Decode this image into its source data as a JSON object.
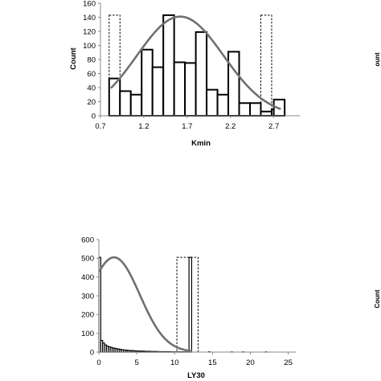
{
  "edge_fragment": {
    "upper": "ount",
    "lower": "Count"
  },
  "chart_data": [
    {
      "type": "bar",
      "subtype": "histogram",
      "xlabel": "Kmin",
      "ylabel": "Count",
      "xlim": [
        0.7,
        3.0
      ],
      "ylim": [
        0,
        160
      ],
      "xticks": [
        "0.7",
        "1.2",
        "1.7",
        "2.2",
        "2.7"
      ],
      "yticks": [
        "0",
        "20",
        "40",
        "60",
        "80",
        "100",
        "120",
        "140",
        "160"
      ],
      "bin_width": 0.125,
      "bins": [
        0.8,
        0.925,
        1.05,
        1.175,
        1.3,
        1.425,
        1.55,
        1.675,
        1.8,
        1.925,
        2.05,
        2.175,
        2.3,
        2.425,
        2.55,
        2.675
      ],
      "values": [
        53,
        35,
        30,
        94,
        69,
        143,
        76,
        75,
        119,
        37,
        30,
        91,
        18,
        18,
        6,
        9
      ],
      "last_bin": {
        "x": 2.7,
        "value": 23
      },
      "highlight_bins": [
        {
          "x": 0.8,
          "width": 0.125,
          "value": 143,
          "style": "dashed"
        },
        {
          "x": 2.55,
          "width": 0.125,
          "value": 143,
          "style": "dashed"
        }
      ],
      "fit_curve": {
        "type": "normal",
        "mean": 1.62,
        "sd": 0.5,
        "peak": 141,
        "x_range": [
          0.82,
          2.78
        ]
      },
      "grid": false,
      "legend": "none"
    },
    {
      "type": "bar",
      "subtype": "histogram",
      "xlabel": "LY30",
      "ylabel": "",
      "xlim": [
        0,
        26
      ],
      "ylim": [
        0,
        600
      ],
      "xticks": [
        "0",
        "5",
        "10",
        "15",
        "20",
        "25"
      ],
      "yticks": [
        "0",
        "100",
        "200",
        "300",
        "400",
        "500",
        "600"
      ],
      "bin_width": 0.25,
      "values": [
        505,
        62,
        48,
        38,
        32,
        28,
        25,
        22,
        20,
        18,
        16,
        14,
        12,
        11,
        10,
        9,
        8,
        8,
        7,
        6,
        6,
        5,
        5,
        5,
        4,
        4,
        4,
        3,
        3,
        3,
        3,
        2,
        2,
        2,
        2,
        2,
        2,
        2,
        1,
        1,
        1,
        1,
        1,
        1,
        1,
        1,
        1,
        1
      ],
      "extra_bars": [
        {
          "x": 11.9,
          "width": 0.35,
          "value": 505
        }
      ],
      "highlight_bins": [
        {
          "x": 10.3,
          "width": 2.8,
          "value": 505,
          "style": "dashed"
        }
      ],
      "tail_values": [
        {
          "x": 14.5,
          "value": 2
        },
        {
          "x": 17.5,
          "value": 1
        },
        {
          "x": 19.0,
          "value": 1
        },
        {
          "x": 22.0,
          "value": 1
        }
      ],
      "fit_curve": {
        "type": "normal",
        "mean": 2.0,
        "sd": 3.4,
        "peak": 505,
        "x_range": [
          0.05,
          12.3
        ]
      },
      "grid": false,
      "legend": "none"
    }
  ]
}
